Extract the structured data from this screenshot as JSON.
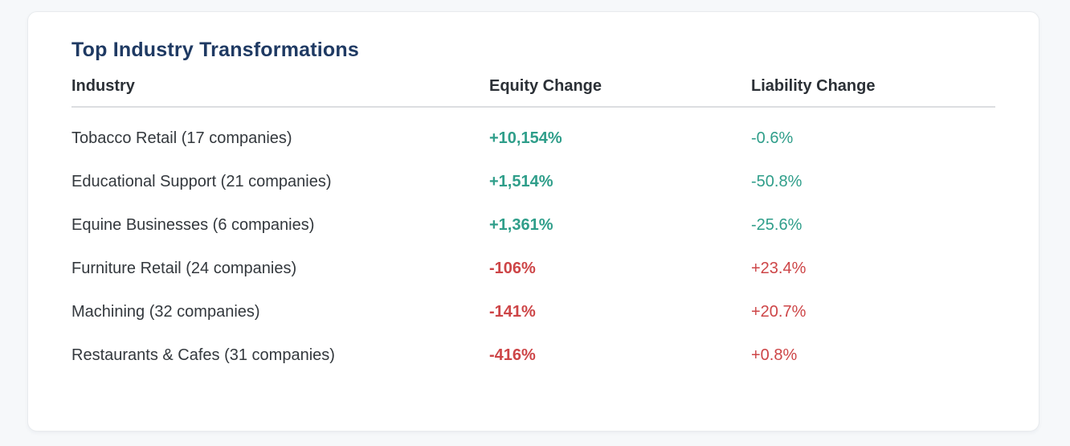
{
  "card": {
    "title": "Top Industry Transformations"
  },
  "colors": {
    "page_background": "#f6f8fa",
    "card_background": "#ffffff",
    "title": "#1f3a63",
    "header_text": "#2b3036",
    "body_text": "#33383d",
    "positive_good": "#2f9e8a",
    "negative_bad": "#cd4547",
    "divider": "#dcdee1"
  },
  "chart_data": {
    "type": "table",
    "title": "Top Industry Transformations",
    "columns": [
      "Industry",
      "Equity Change",
      "Liability Change"
    ],
    "rows": [
      {
        "industry": "Tobacco Retail (17 companies)",
        "equity": "+10,154%",
        "liability": "-0.6%",
        "equity_color": "#2f9e8a",
        "liability_color": "#2f9e8a"
      },
      {
        "industry": "Educational Support (21 companies)",
        "equity": "+1,514%",
        "liability": "-50.8%",
        "equity_color": "#2f9e8a",
        "liability_color": "#2f9e8a"
      },
      {
        "industry": "Equine Businesses (6 companies)",
        "equity": "+1,361%",
        "liability": "-25.6%",
        "equity_color": "#2f9e8a",
        "liability_color": "#2f9e8a"
      },
      {
        "industry": "Furniture Retail (24 companies)",
        "equity": "-106%",
        "liability": "+23.4%",
        "equity_color": "#cd4547",
        "liability_color": "#cd4547"
      },
      {
        "industry": "Machining (32 companies)",
        "equity": "-141%",
        "liability": "+20.7%",
        "equity_color": "#cd4547",
        "liability_color": "#cd4547"
      },
      {
        "industry": "Restaurants & Cafes (31 companies)",
        "equity": "-416%",
        "liability": "+0.8%",
        "equity_color": "#cd4547",
        "liability_color": "#cd4547"
      }
    ]
  }
}
